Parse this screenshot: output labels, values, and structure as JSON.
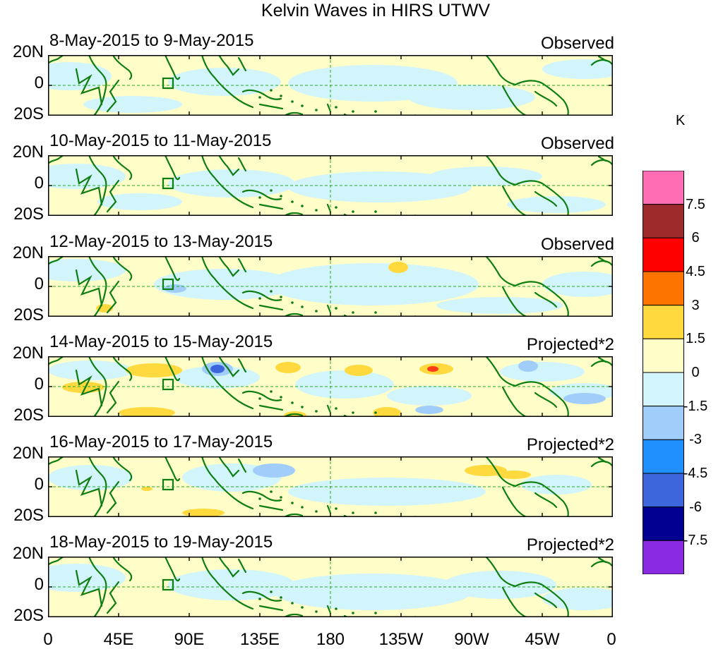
{
  "title": "Kelvin Waves in HIRS UTWV",
  "panels": [
    {
      "date": "8-May-2015 to 9-May-2015",
      "kind": "Observed"
    },
    {
      "date": "10-May-2015 to 11-May-2015",
      "kind": "Observed"
    },
    {
      "date": "12-May-2015 to 13-May-2015",
      "kind": "Observed"
    },
    {
      "date": "14-May-2015 to 15-May-2015",
      "kind": "Projected*2"
    },
    {
      "date": "16-May-2015 to 17-May-2015",
      "kind": "Projected*2"
    },
    {
      "date": "18-May-2015 to 19-May-2015",
      "kind": "Projected*2"
    }
  ],
  "lat_labels": [
    "20N",
    "0",
    "20S"
  ],
  "lon_labels": [
    "0",
    "45E",
    "90E",
    "135E",
    "180",
    "135W",
    "90W",
    "45W",
    "0"
  ],
  "colorbar": {
    "units": "K",
    "labels": [
      "7.5",
      "6",
      "4.5",
      "3",
      "1.5",
      "0",
      "-1.5",
      "-3",
      "-4.5",
      "-6",
      "-7.5"
    ],
    "colors": [
      "#ff6eb4",
      "#9e2a2b",
      "#ff0000",
      "#ff7300",
      "#ffd93d",
      "#fffdc8",
      "#d2f5fb",
      "#a0cdfa",
      "#2090ff",
      "#3d65dc",
      "#020090",
      "#8a2be2"
    ]
  },
  "colors": {
    "coast": "#0e7d12",
    "dashed": "#22aa22",
    "neutral_pos": "#fffdc8",
    "neutral_neg": "#d2f5fb"
  }
}
